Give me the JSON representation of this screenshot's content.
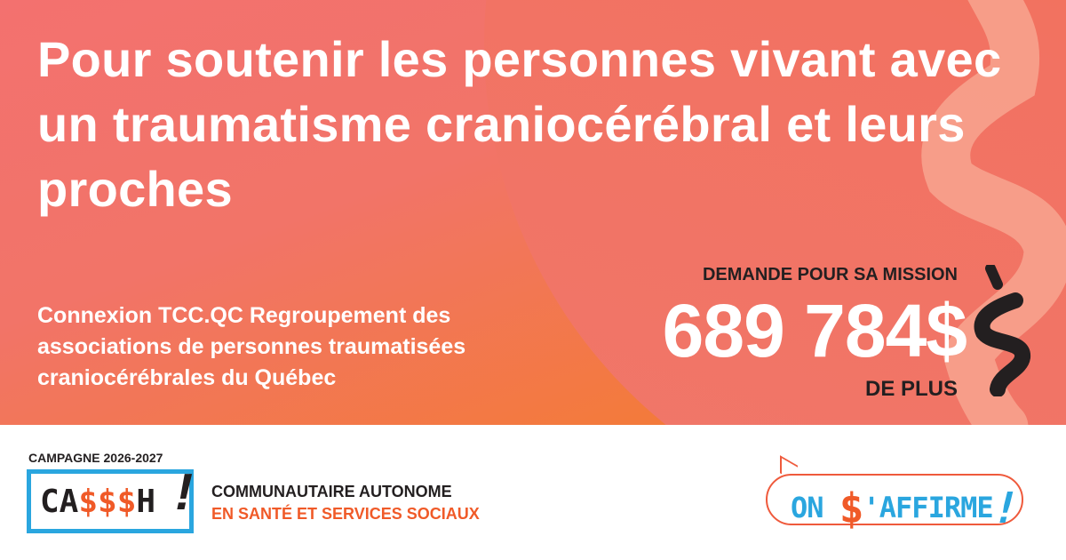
{
  "headline": "Pour soutenir les personnes vivant avec un traumatisme craniocérébral et leurs proches",
  "organization": "Connexion TCC.QC Regroupement des associations de personnes traumatisées craniocérébrales du Québec",
  "ask": {
    "label": "DEMANDE POUR SA MISSION",
    "amount": "689 784$",
    "suffix": "DE PLUS"
  },
  "footer": {
    "campaign": "CAMPAGNE 2026-2027",
    "logo_left": "CA$$$H!",
    "tagline_line1": "COMMUNAUTAIRE AUTONOME",
    "tagline_line2": "EN SANTÉ ET SERVICES SOCIAUX",
    "logo_right": "ON $'AFFIRME!"
  },
  "colors": {
    "orange": "#f05a28",
    "blue": "#2aa6df",
    "dark": "#231f20",
    "bg_pink": "#f3716f",
    "bg_orange": "#f47a2c"
  }
}
